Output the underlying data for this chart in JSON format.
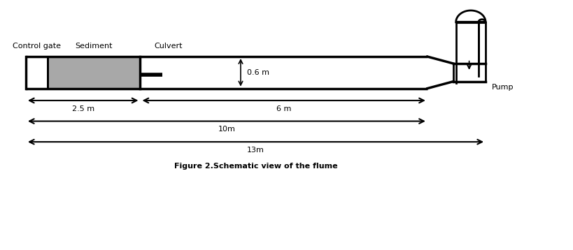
{
  "figure_width": 8.2,
  "figure_height": 3.58,
  "dpi": 100,
  "bg_color": "#ffffff",
  "flume_color": "#000000",
  "sediment_color": "#a8a8a8",
  "label_control_gate": "Control gate",
  "label_sediment": "Sediment",
  "label_culvert": "Culvert",
  "label_pump": "Pump",
  "label_06m": "0.6 m",
  "label_25m": "2.5 m",
  "label_6m": "6 m",
  "label_10m": "10m",
  "label_13m": "13m",
  "caption": "Figure 2.Schematic view of the flume",
  "caption_fontsize": 8,
  "label_fontsize": 8,
  "linewidth": 2.0,
  "xlim": [
    0,
    14
  ],
  "ylim": [
    -3.2,
    4.5
  ]
}
